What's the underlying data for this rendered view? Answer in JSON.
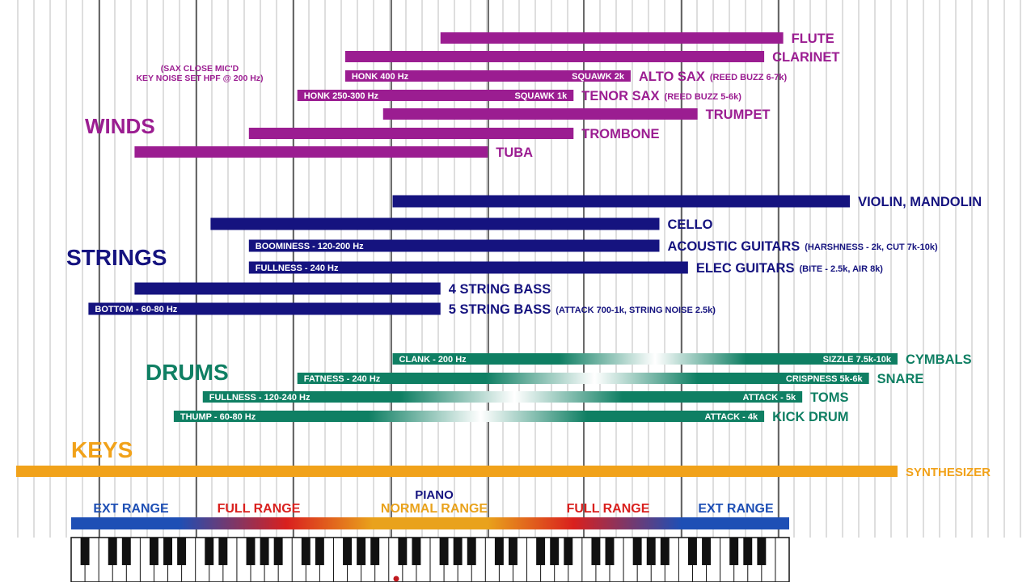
{
  "chart_data": {
    "type": "bar",
    "subtype": "floating-range",
    "colors": {
      "winds": "#9b1d91",
      "strings": "#15137f",
      "drums": "#0f7f63",
      "keys": "#f1a21a",
      "ext_range": "#1e4fb5",
      "full_range": "#d9201e",
      "normal_range": "#e9a21c",
      "piano_label": "#15137f"
    },
    "groups": [
      {
        "name": "WINDS",
        "color_key": "winds",
        "note": [
          "(SAX CLOSE MIC'D",
          "KEY NOISE SET HPF @ 200 Hz)"
        ],
        "instruments": [
          {
            "name": "FLUTE",
            "low": 262,
            "high": 2093
          },
          {
            "name": "CLARINET",
            "low": 147,
            "high": 1865
          },
          {
            "name": "ALTO SAX",
            "suffix": "(REED BUZZ 6-7k)",
            "low": 147,
            "high": 830,
            "inner": [
              {
                "text": "HONK 400 Hz",
                "at": "start"
              },
              {
                "text": "SQUAWK  2k",
                "at": "end"
              }
            ]
          },
          {
            "name": "TENOR SAX",
            "suffix": "(REED BUZZ 5-6k)",
            "low": 110,
            "high": 587,
            "inner": [
              {
                "text": "HONK 250-300 Hz",
                "at": "start"
              },
              {
                "text": "SQUAWK  1k",
                "at": "end"
              }
            ]
          },
          {
            "name": "TRUMPET",
            "low": 185,
            "high": 1245
          },
          {
            "name": "TROMBONE",
            "low": 82,
            "high": 587
          },
          {
            "name": "TUBA",
            "low": 41,
            "high": 349
          }
        ]
      },
      {
        "name": "STRINGS",
        "color_key": "strings",
        "instruments": [
          {
            "name": "VIOLIN, MANDOLIN",
            "low": 196,
            "high": 3136
          },
          {
            "name": "CELLO",
            "low": 65,
            "high": 988
          },
          {
            "name": "ACOUSTIC GUITARS",
            "suffix": "(HARSHNESS - 2k, CUT 7k-10k)",
            "low": 82,
            "high": 988,
            "inner": [
              {
                "text": "BOOMINESS - 120-200 Hz",
                "at": "start"
              }
            ]
          },
          {
            "name": "ELEC GUITARS",
            "suffix": "(BITE - 2.5k, AIR 8k)",
            "low": 82,
            "high": 1175,
            "inner": [
              {
                "text": "FULLNESS - 240 Hz",
                "at": "start"
              }
            ]
          },
          {
            "name": "4 STRING BASS",
            "low": 41,
            "high": 262
          },
          {
            "name": "5 STRING BASS",
            "suffix": "(ATTACK 700-1k, STRING NOISE 2.5k)",
            "low": 31,
            "high": 262,
            "inner": [
              {
                "text": "BOTTOM - 60-80 Hz",
                "at": "start"
              }
            ]
          }
        ]
      },
      {
        "name": "DRUMS",
        "color_key": "drums",
        "instruments": [
          {
            "name": "CYMBALS",
            "low": 196,
            "high": 4186,
            "inner": [
              {
                "text": "CLANK - 200 Hz",
                "at": "start"
              },
              {
                "text": "SIZZLE 7.5k-10k",
                "at": "end"
              }
            ]
          },
          {
            "name": "SNARE",
            "low": 110,
            "high": 3520,
            "inner": [
              {
                "text": "FATNESS - 240 Hz",
                "at": "start"
              },
              {
                "text": "CRISPNESS 5k-6k",
                "at": "end"
              }
            ]
          },
          {
            "name": "TOMS",
            "low": 62,
            "high": 2349,
            "inner": [
              {
                "text": "FULLNESS - 120-240 Hz",
                "at": "start"
              },
              {
                "text": "ATTACK - 5k",
                "at": "end"
              }
            ]
          },
          {
            "name": "KICK DRUM",
            "low": 52,
            "high": 1865,
            "inner": [
              {
                "text": "THUMP - 60-80 Hz",
                "at": "start"
              },
              {
                "text": "ATTACK - 4k",
                "at": "end"
              }
            ]
          }
        ]
      },
      {
        "name": "KEYS",
        "color_key": "keys",
        "instruments": [
          {
            "name": "SYNTHESIZER",
            "low": 20,
            "high": 4186
          }
        ]
      }
    ],
    "piano": {
      "title": "PIANO",
      "ranges": [
        {
          "label": "EXT RANGE",
          "color_key": "ext_range"
        },
        {
          "label": "FULL RANGE",
          "color_key": "full_range"
        },
        {
          "label": "NORMAL RANGE",
          "color_key": "normal_range"
        },
        {
          "label": "FULL RANGE",
          "color_key": "full_range"
        },
        {
          "label": "EXT RANGE",
          "color_key": "ext_range"
        }
      ],
      "low": 27.5,
      "high": 4186
    },
    "x_scale": "log",
    "grid": true,
    "legend": "none"
  }
}
